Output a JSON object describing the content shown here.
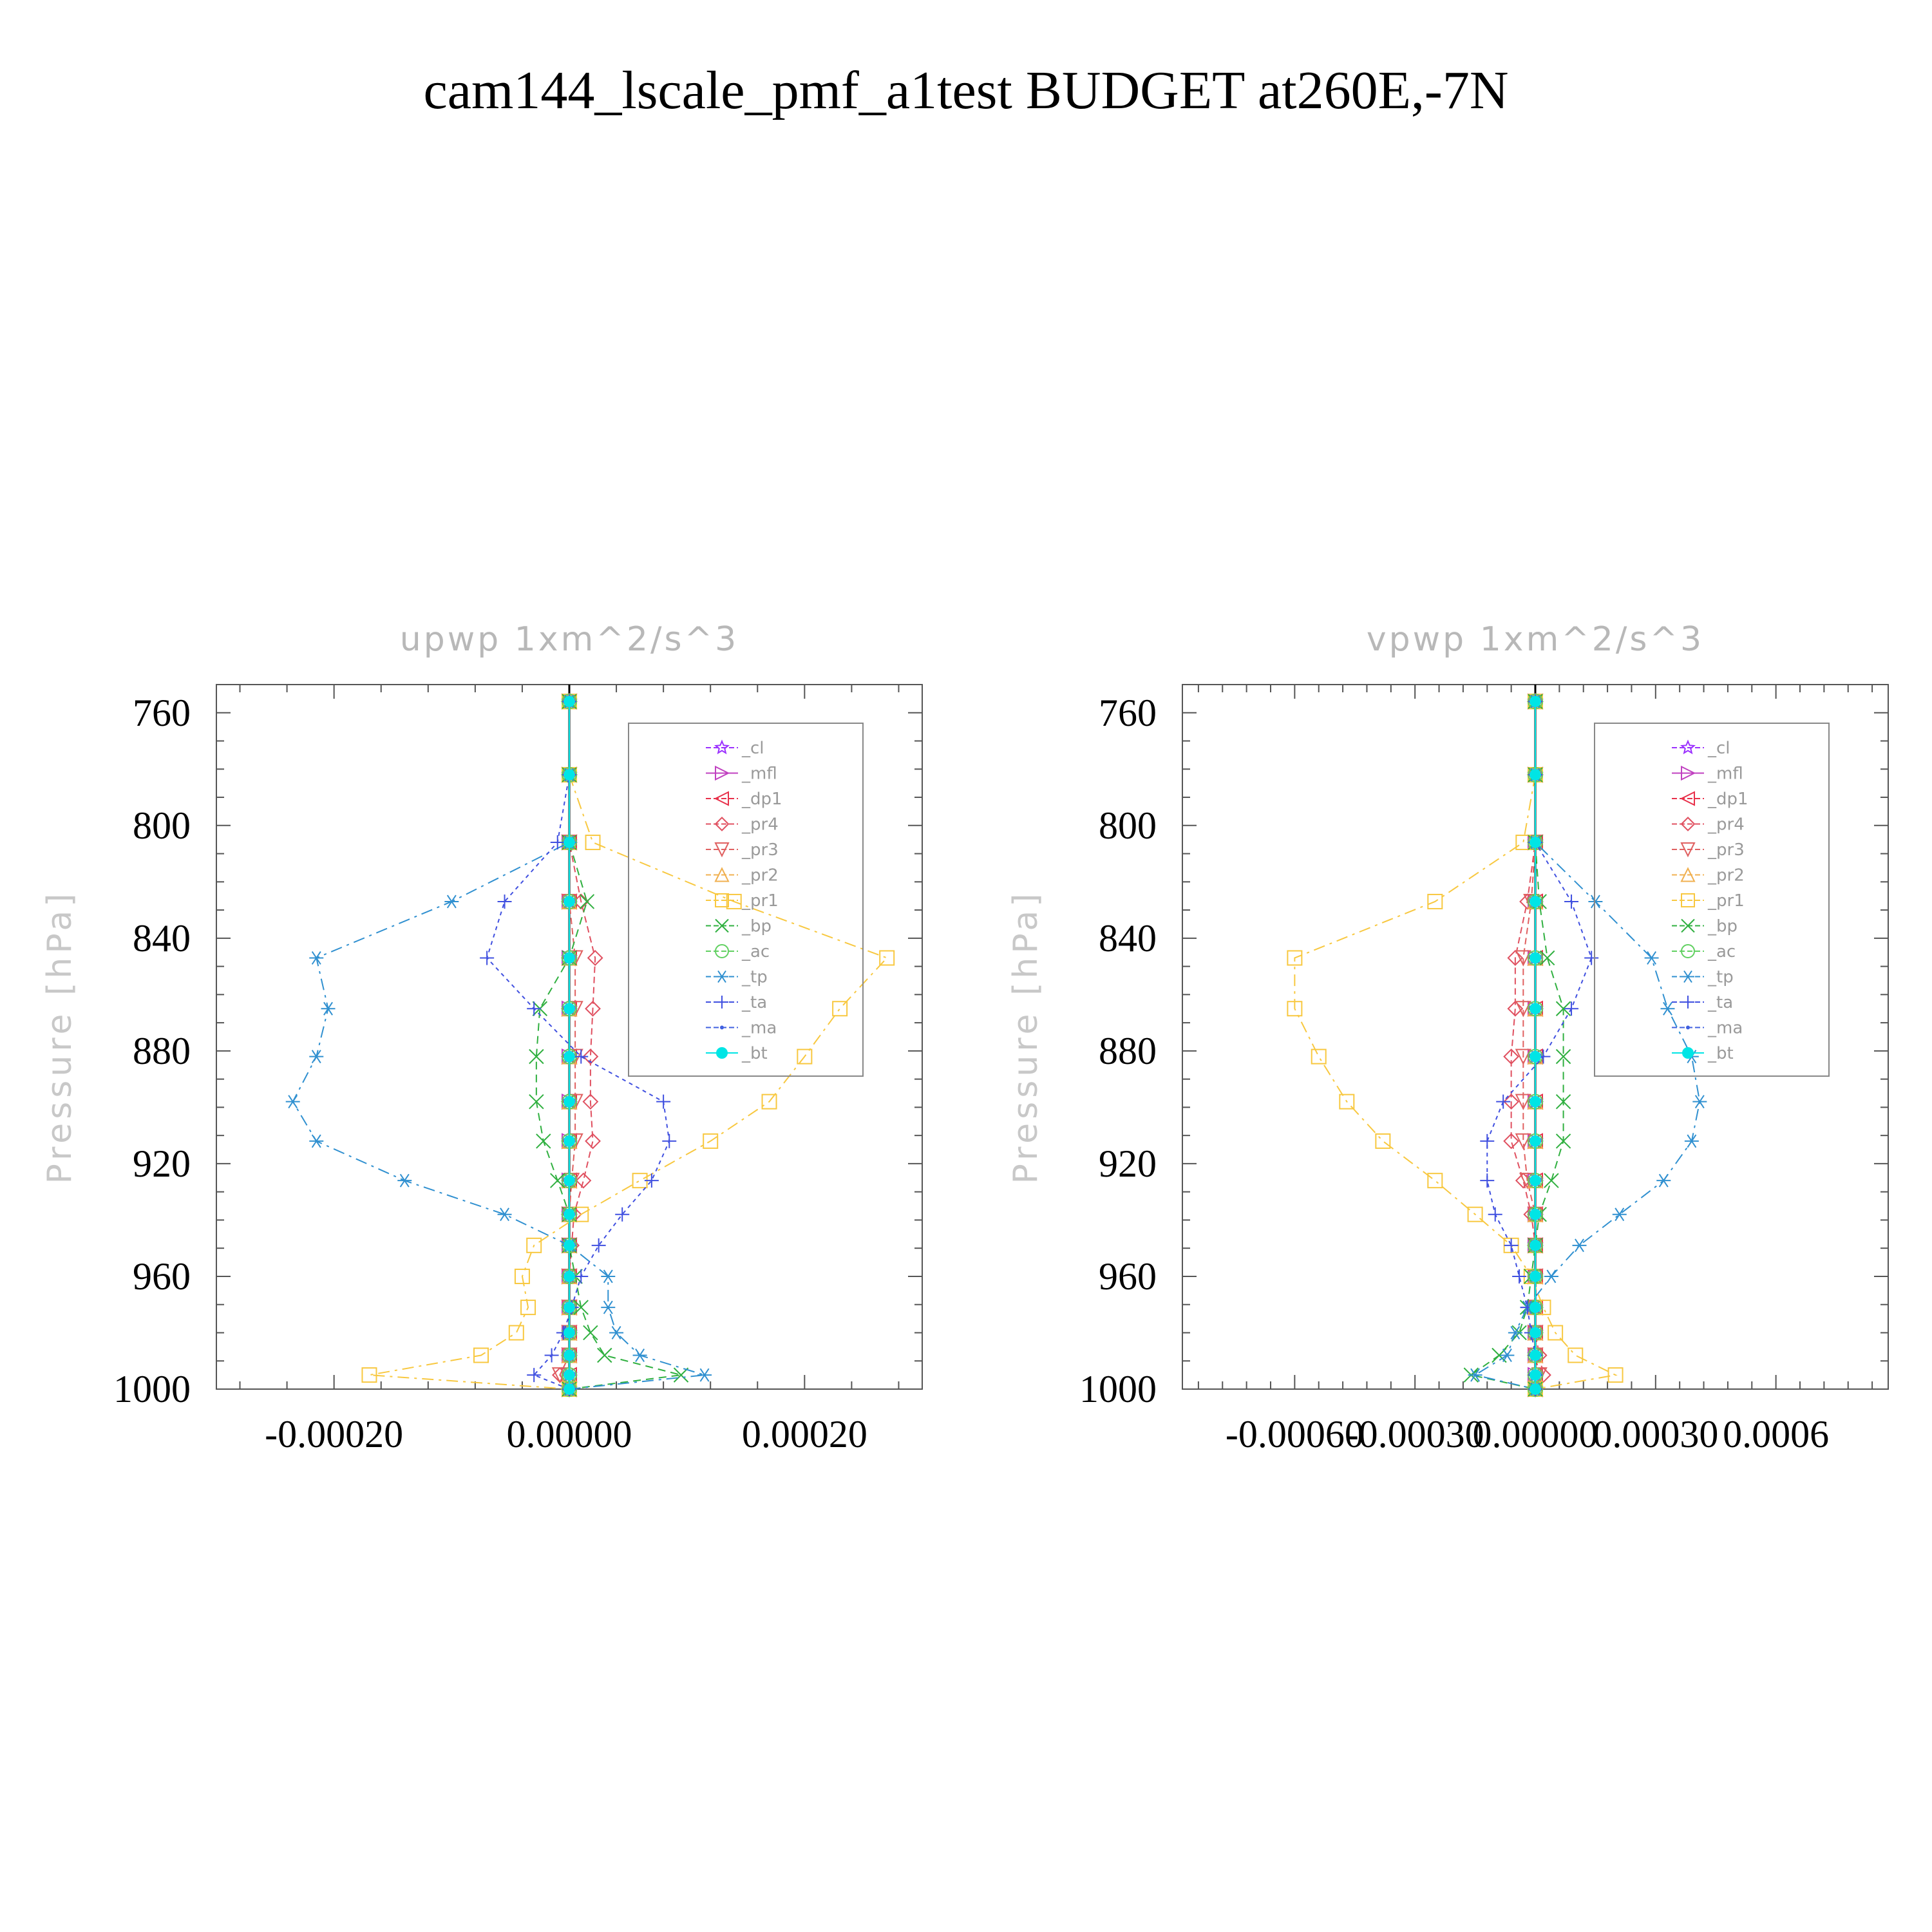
{
  "figure_title": "cam144_lscale_pmf_a1test  BUDGET at260E,-7N",
  "chart_data": [
    {
      "type": "line",
      "title": "upwp    1xm^2/s^3",
      "ylabel": "Pressure  [hPa]",
      "xlim": [
        -0.0003,
        0.0003
      ],
      "ylim": [
        1000,
        750
      ],
      "x_ticks": [
        -0.0002,
        0.0,
        0.0002
      ],
      "x_tick_labels": [
        "-0.00020",
        "0.00000",
        "0.00020"
      ],
      "y_ticks": [
        760,
        800,
        840,
        880,
        920,
        960,
        1000
      ],
      "y_tick_labels": [
        "760",
        "800",
        "840",
        "880",
        "920",
        "960",
        "1000"
      ],
      "legend_position": "top-right",
      "levels": [
        756,
        782,
        806,
        827,
        847,
        865,
        882,
        898,
        912,
        926,
        938,
        949,
        960,
        971,
        980,
        988,
        995,
        1000
      ],
      "series": [
        {
          "name": "_cl",
          "color": "#9b30ff",
          "dash": "6,6",
          "marker": "star",
          "values": [
            0,
            0,
            0,
            0,
            0,
            0,
            0,
            0,
            0,
            0,
            0,
            0,
            0,
            0,
            0,
            0,
            0,
            0
          ]
        },
        {
          "name": "_mfl",
          "color": "#c040c0",
          "dash": "none",
          "marker": "tri-right",
          "values": [
            0,
            0,
            0,
            0,
            0,
            0,
            0,
            0,
            0,
            0,
            0,
            0,
            0,
            0,
            0,
            0,
            0,
            0
          ]
        },
        {
          "name": "_dp1",
          "color": "#e8304a",
          "dash": "18,8,4,8",
          "marker": "tri-left",
          "values": [
            0,
            0,
            0,
            0,
            0,
            0,
            0,
            0,
            0,
            0,
            0,
            0,
            0,
            0,
            0,
            0,
            0,
            0
          ]
        },
        {
          "name": "_pr4",
          "color": "#e05060",
          "dash": "10,6",
          "marker": "diamond",
          "values": [
            0,
            0,
            0,
            1e-05,
            2.2e-05,
            2e-05,
            1.8e-05,
            1.8e-05,
            2e-05,
            1.2e-05,
            4e-06,
            2e-06,
            0,
            0,
            0,
            0,
            -8e-06,
            0
          ]
        },
        {
          "name": "_pr3",
          "color": "#e06060",
          "dash": "10,6",
          "marker": "tri-down",
          "values": [
            0,
            0,
            0,
            0,
            5e-06,
            5e-06,
            5e-06,
            5e-06,
            5e-06,
            2e-06,
            0,
            0,
            0,
            0,
            0,
            0,
            -8e-06,
            0
          ]
        },
        {
          "name": "_pr2",
          "color": "#f0b050",
          "dash": "10,6",
          "marker": "tri-up",
          "values": [
            0,
            0,
            0,
            0,
            0,
            0,
            0,
            0,
            0,
            0,
            0,
            0,
            0,
            0,
            0,
            0,
            0,
            0
          ]
        },
        {
          "name": "_pr1",
          "color": "#f8c840",
          "dash": "18,8,4,8",
          "marker": "square",
          "values": [
            0,
            0,
            2e-05,
            0.00014,
            0.00027,
            0.00023,
            0.0002,
            0.00017,
            0.00012,
            6e-05,
            1e-05,
            -3e-05,
            -4e-05,
            -3.5e-05,
            -4.5e-05,
            -7.5e-05,
            -0.00017,
            0
          ]
        },
        {
          "name": "_bp",
          "color": "#30b040",
          "dash": "12,8",
          "marker": "x",
          "values": [
            0,
            0,
            0,
            1.5e-05,
            0,
            -2.5e-05,
            -2.8e-05,
            -2.8e-05,
            -2.2e-05,
            -1e-05,
            0,
            0,
            5e-06,
            1e-05,
            1.8e-05,
            3e-05,
            9.5e-05,
            0
          ]
        },
        {
          "name": "_ac",
          "color": "#60d060",
          "dash": "12,8",
          "marker": "circle",
          "values": [
            0,
            0,
            0,
            0,
            0,
            0,
            0,
            0,
            0,
            0,
            0,
            0,
            0,
            0,
            0,
            0,
            0,
            0
          ]
        },
        {
          "name": "_tp",
          "color": "#3090d0",
          "dash": "18,8,4,8",
          "marker": "asterisk",
          "values": [
            0,
            0,
            0,
            -0.0001,
            -0.000215,
            -0.000205,
            -0.000215,
            -0.000235,
            -0.000215,
            -0.00014,
            -5.5e-05,
            0,
            3.3e-05,
            3.3e-05,
            4e-05,
            6e-05,
            0.000115,
            0
          ]
        },
        {
          "name": "_ta",
          "color": "#4050e0",
          "dash": "6,6",
          "marker": "plus",
          "values": [
            0,
            0,
            -1e-05,
            -5.5e-05,
            -7e-05,
            -3e-05,
            1e-05,
            8e-05,
            8.5e-05,
            7e-05,
            4.5e-05,
            2.5e-05,
            1e-05,
            2e-06,
            -5e-06,
            -1.5e-05,
            -3e-05,
            0
          ]
        },
        {
          "name": "_ma",
          "color": "#4060e0",
          "dash": "20,10",
          "marker": "dot",
          "values": [
            0,
            0,
            0,
            0,
            0,
            0,
            0,
            0,
            0,
            0,
            0,
            0,
            0,
            0,
            0,
            0,
            0,
            0
          ]
        },
        {
          "name": "_bt",
          "color": "#00e5e5",
          "dash": "none",
          "marker": "filled-circle",
          "values": [
            0,
            0,
            0,
            0,
            0,
            0,
            0,
            0,
            0,
            0,
            0,
            0,
            0,
            0,
            0,
            0,
            0,
            0
          ]
        }
      ]
    },
    {
      "type": "line",
      "title": "vpwp    1xm^2/s^3",
      "ylabel": "Pressure  [hPa]",
      "xlim": [
        -0.00088,
        0.00088
      ],
      "ylim": [
        1000,
        750
      ],
      "x_ticks": [
        -0.0006,
        -0.0003,
        0.0,
        0.0003,
        0.0006
      ],
      "x_tick_labels": [
        "-0.00060",
        "-0.00030",
        "0.00000",
        "0.00030",
        "0.0006"
      ],
      "y_ticks": [
        760,
        800,
        840,
        880,
        920,
        960,
        1000
      ],
      "y_tick_labels": [
        "760",
        "800",
        "840",
        "880",
        "920",
        "960",
        "1000"
      ],
      "legend_position": "top-right",
      "levels": [
        756,
        782,
        806,
        827,
        847,
        865,
        882,
        898,
        912,
        926,
        938,
        949,
        960,
        971,
        980,
        988,
        995,
        1000
      ],
      "series": [
        {
          "name": "_cl",
          "color": "#9b30ff",
          "dash": "6,6",
          "marker": "star",
          "values": [
            0,
            0,
            0,
            0,
            0,
            0,
            0,
            0,
            0,
            0,
            0,
            0,
            0,
            0,
            0,
            0,
            0,
            0
          ]
        },
        {
          "name": "_mfl",
          "color": "#c040c0",
          "dash": "none",
          "marker": "tri-right",
          "values": [
            0,
            0,
            0,
            0,
            0,
            0,
            0,
            0,
            0,
            0,
            0,
            0,
            0,
            0,
            0,
            0,
            0,
            0
          ]
        },
        {
          "name": "_dp1",
          "color": "#e8304a",
          "dash": "18,8,4,8",
          "marker": "tri-left",
          "values": [
            0,
            0,
            0,
            0,
            0,
            0,
            0,
            0,
            0,
            0,
            0,
            0,
            0,
            0,
            0,
            0,
            0,
            0
          ]
        },
        {
          "name": "_pr4",
          "color": "#e05060",
          "dash": "10,6",
          "marker": "diamond",
          "values": [
            0,
            0,
            0,
            -2e-05,
            -5e-05,
            -5e-05,
            -6e-05,
            -6e-05,
            -6e-05,
            -3e-05,
            -1e-05,
            0,
            0,
            0,
            0,
            1e-05,
            2e-05,
            0
          ]
        },
        {
          "name": "_pr3",
          "color": "#e06060",
          "dash": "10,6",
          "marker": "tri-down",
          "values": [
            0,
            0,
            0,
            -1e-05,
            -3e-05,
            -3e-05,
            -3e-05,
            -3e-05,
            -3e-05,
            -2e-05,
            0,
            0,
            0,
            0,
            0,
            0,
            1e-05,
            0
          ]
        },
        {
          "name": "_pr2",
          "color": "#f0b050",
          "dash": "10,6",
          "marker": "tri-up",
          "values": [
            0,
            0,
            0,
            0,
            0,
            0,
            0,
            0,
            0,
            0,
            0,
            0,
            0,
            0,
            0,
            0,
            0,
            0
          ]
        },
        {
          "name": "_pr1",
          "color": "#f8c840",
          "dash": "18,8,4,8",
          "marker": "square",
          "values": [
            0,
            0,
            -3e-05,
            -0.00025,
            -0.0006,
            -0.0006,
            -0.00054,
            -0.00047,
            -0.00038,
            -0.00025,
            -0.00015,
            -6e-05,
            -1e-05,
            2e-05,
            5e-05,
            0.0001,
            0.0002,
            0
          ]
        },
        {
          "name": "_bp",
          "color": "#30b040",
          "dash": "12,8",
          "marker": "x",
          "values": [
            0,
            0,
            0,
            1e-05,
            3e-05,
            7e-05,
            7e-05,
            7e-05,
            7e-05,
            4e-05,
            1e-05,
            0,
            -1e-05,
            -2e-05,
            -4e-05,
            -9e-05,
            -0.00016,
            0
          ]
        },
        {
          "name": "_ac",
          "color": "#60d060",
          "dash": "12,8",
          "marker": "circle",
          "values": [
            0,
            0,
            0,
            0,
            0,
            0,
            0,
            0,
            0,
            0,
            0,
            0,
            0,
            0,
            0,
            0,
            0,
            0
          ]
        },
        {
          "name": "_tp",
          "color": "#3090d0",
          "dash": "18,8,4,8",
          "marker": "asterisk",
          "values": [
            0,
            0,
            0,
            0.00015,
            0.00029,
            0.00033,
            0.00039,
            0.00041,
            0.00039,
            0.00032,
            0.00021,
            0.00011,
            4e-05,
            -2e-05,
            -5e-05,
            -7e-05,
            -0.00015,
            0
          ]
        },
        {
          "name": "_ta",
          "color": "#4050e0",
          "dash": "6,6",
          "marker": "plus",
          "values": [
            0,
            0,
            0,
            9e-05,
            0.00014,
            9e-05,
            2e-05,
            -8e-05,
            -0.00012,
            -0.00012,
            -0.0001,
            -6e-05,
            -4e-05,
            -2e-05,
            -1e-05,
            0,
            0,
            0
          ]
        },
        {
          "name": "_ma",
          "color": "#4060e0",
          "dash": "20,10",
          "marker": "dot",
          "values": [
            0,
            0,
            0,
            0,
            0,
            0,
            0,
            0,
            0,
            0,
            0,
            0,
            0,
            0,
            0,
            0,
            0,
            0
          ]
        },
        {
          "name": "_bt",
          "color": "#00e5e5",
          "dash": "none",
          "marker": "filled-circle",
          "values": [
            0,
            0,
            0,
            0,
            0,
            0,
            0,
            0,
            0,
            0,
            0,
            0,
            0,
            0,
            0,
            0,
            0,
            0
          ]
        }
      ]
    }
  ]
}
